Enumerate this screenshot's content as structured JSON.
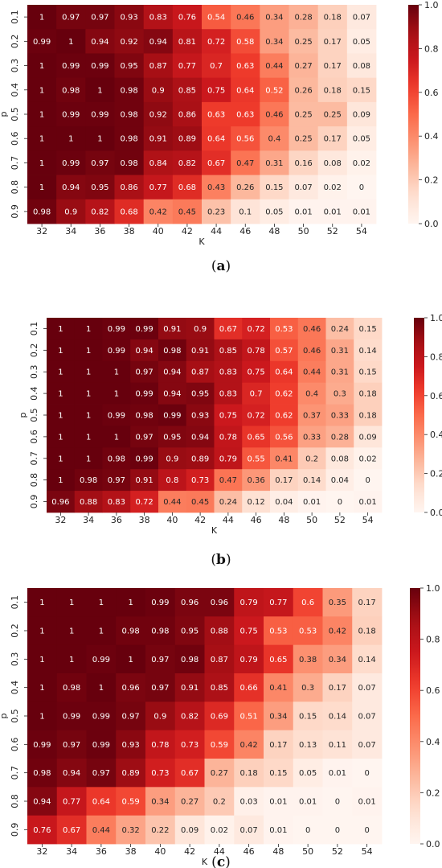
{
  "chart_data": [
    {
      "type": "heatmap",
      "caption_letter": "a",
      "xlabel": "K",
      "ylabel": "p",
      "x_categories": [
        "32",
        "34",
        "36",
        "38",
        "40",
        "42",
        "44",
        "46",
        "48",
        "50",
        "52",
        "54"
      ],
      "y_categories": [
        "0.1",
        "0.2",
        "0.3",
        "0.4",
        "0.5",
        "0.6",
        "0.7",
        "0.8",
        "0.9"
      ],
      "colorbar": {
        "min": 0.0,
        "max": 1.0,
        "ticks": [
          "0.0",
          "0.2",
          "0.4",
          "0.6",
          "0.8",
          "1.0"
        ]
      },
      "values": [
        [
          1,
          0.97,
          0.97,
          0.93,
          0.83,
          0.76,
          0.54,
          0.46,
          0.34,
          0.28,
          0.18,
          0.07
        ],
        [
          0.99,
          1,
          0.94,
          0.92,
          0.94,
          0.81,
          0.72,
          0.58,
          0.34,
          0.25,
          0.17,
          0.05
        ],
        [
          1,
          0.99,
          0.99,
          0.95,
          0.87,
          0.77,
          0.7,
          0.63,
          0.44,
          0.27,
          0.17,
          0.08
        ],
        [
          1,
          0.98,
          1,
          0.98,
          0.9,
          0.85,
          0.75,
          0.64,
          0.52,
          0.26,
          0.18,
          0.15
        ],
        [
          1,
          0.99,
          0.99,
          0.98,
          0.92,
          0.86,
          0.63,
          0.63,
          0.46,
          0.25,
          0.25,
          0.09
        ],
        [
          1,
          1,
          1,
          0.98,
          0.91,
          0.89,
          0.64,
          0.56,
          0.4,
          0.25,
          0.17,
          0.05
        ],
        [
          1,
          0.99,
          0.97,
          0.98,
          0.84,
          0.82,
          0.67,
          0.47,
          0.31,
          0.16,
          0.08,
          0.02
        ],
        [
          1,
          0.94,
          0.95,
          0.86,
          0.77,
          0.68,
          0.43,
          0.26,
          0.15,
          0.07,
          0.02,
          0
        ],
        [
          0.98,
          0.9,
          0.82,
          0.68,
          0.42,
          0.45,
          0.23,
          0.1,
          0.05,
          0.01,
          0.01,
          0.01
        ]
      ]
    },
    {
      "type": "heatmap",
      "caption_letter": "b",
      "xlabel": "K",
      "ylabel": "p",
      "x_categories": [
        "32",
        "34",
        "36",
        "38",
        "40",
        "42",
        "44",
        "46",
        "48",
        "50",
        "52",
        "54"
      ],
      "y_categories": [
        "0.1",
        "0.2",
        "0.3",
        "0.4",
        "0.5",
        "0.6",
        "0.7",
        "0.8",
        "0.9"
      ],
      "colorbar": {
        "min": 0.0,
        "max": 1.0,
        "ticks": [
          "0.0",
          "0.2",
          "0.4",
          "0.6",
          "0.8",
          "1.0"
        ]
      },
      "values": [
        [
          1,
          1,
          0.99,
          0.99,
          0.91,
          0.9,
          0.67,
          0.72,
          0.53,
          0.46,
          0.24,
          0.15
        ],
        [
          1,
          1,
          0.99,
          0.94,
          0.98,
          0.91,
          0.85,
          0.78,
          0.57,
          0.46,
          0.31,
          0.14
        ],
        [
          1,
          1,
          1,
          0.97,
          0.94,
          0.87,
          0.83,
          0.75,
          0.64,
          0.44,
          0.31,
          0.15
        ],
        [
          1,
          1,
          1,
          0.99,
          0.94,
          0.95,
          0.83,
          0.7,
          0.62,
          0.4,
          0.3,
          0.18
        ],
        [
          1,
          1,
          0.99,
          0.98,
          0.99,
          0.93,
          0.75,
          0.72,
          0.62,
          0.37,
          0.33,
          0.18
        ],
        [
          1,
          1,
          1,
          0.97,
          0.95,
          0.94,
          0.78,
          0.65,
          0.56,
          0.33,
          0.28,
          0.09
        ],
        [
          1,
          1,
          0.98,
          0.99,
          0.9,
          0.89,
          0.79,
          0.55,
          0.41,
          0.2,
          0.08,
          0.02
        ],
        [
          1,
          0.98,
          0.97,
          0.91,
          0.8,
          0.73,
          0.47,
          0.36,
          0.17,
          0.14,
          0.04,
          0
        ],
        [
          0.96,
          0.88,
          0.83,
          0.72,
          0.44,
          0.45,
          0.24,
          0.12,
          0.04,
          0.01,
          0,
          0.01
        ]
      ]
    },
    {
      "type": "heatmap",
      "caption_letter": "c",
      "xlabel": "K",
      "ylabel": "p",
      "x_categories": [
        "32",
        "34",
        "36",
        "38",
        "40",
        "42",
        "44",
        "46",
        "48",
        "50",
        "52",
        "54"
      ],
      "y_categories": [
        "0.1",
        "0.2",
        "0.3",
        "0.4",
        "0.5",
        "0.6",
        "0.7",
        "0.8",
        "0.9"
      ],
      "colorbar": {
        "min": 0.0,
        "max": 1.0,
        "ticks": [
          "0.0",
          "0.2",
          "0.4",
          "0.6",
          "0.8",
          "1.0"
        ]
      },
      "values": [
        [
          1,
          1,
          1,
          1,
          0.99,
          0.96,
          0.96,
          0.79,
          0.77,
          0.6,
          0.35,
          0.17
        ],
        [
          1,
          1,
          1,
          0.98,
          0.98,
          0.95,
          0.88,
          0.75,
          0.53,
          0.53,
          0.42,
          0.18
        ],
        [
          1,
          1,
          0.99,
          1,
          0.97,
          0.98,
          0.87,
          0.79,
          0.65,
          0.38,
          0.34,
          0.14
        ],
        [
          1,
          0.98,
          1,
          0.96,
          0.97,
          0.91,
          0.85,
          0.66,
          0.41,
          0.3,
          0.17,
          0.07
        ],
        [
          1,
          0.99,
          0.99,
          0.97,
          0.9,
          0.82,
          0.69,
          0.51,
          0.34,
          0.15,
          0.14,
          0.07
        ],
        [
          0.99,
          0.97,
          0.99,
          0.93,
          0.78,
          0.73,
          0.59,
          0.42,
          0.17,
          0.13,
          0.11,
          0.07
        ],
        [
          0.98,
          0.94,
          0.97,
          0.89,
          0.73,
          0.67,
          0.27,
          0.18,
          0.15,
          0.05,
          0.01,
          0
        ],
        [
          0.94,
          0.77,
          0.64,
          0.59,
          0.34,
          0.27,
          0.2,
          0.03,
          0.01,
          0.01,
          0,
          0.01
        ],
        [
          0.76,
          0.67,
          0.44,
          0.32,
          0.22,
          0.09,
          0.02,
          0.07,
          0.01,
          0,
          0,
          0
        ]
      ]
    }
  ]
}
